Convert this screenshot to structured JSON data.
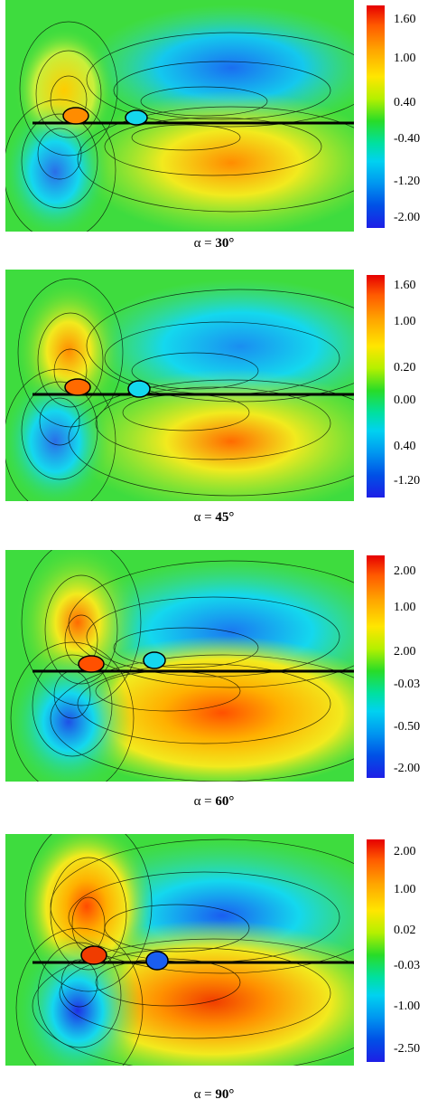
{
  "panels": [
    {
      "caption_prefix": "α = ",
      "caption_value": "30°",
      "ticks": [
        "1.60",
        "1.00",
        "0.40",
        "-0.40",
        "-1.20",
        "-2.00"
      ]
    },
    {
      "caption_prefix": "α = ",
      "caption_value": "45°",
      "ticks": [
        "1.60",
        "1.00",
        "0.20",
        "0.00",
        "0.40",
        "-1.20"
      ]
    },
    {
      "caption_prefix": "α = ",
      "caption_value": "60°",
      "ticks": [
        "2.00",
        "1.00",
        "2.00",
        "-0.03",
        "-0.50",
        "-2.00"
      ]
    },
    {
      "caption_prefix": "α = ",
      "caption_value": "90°",
      "ticks": [
        "2.00",
        "1.00",
        "0.02",
        "-0.03",
        "-1.00",
        "-2.50"
      ]
    }
  ],
  "colors": {
    "red": "#e60000",
    "orange": "#ff7a00",
    "yellow": "#f2ea1e",
    "green": "#3edc3e",
    "cyan": "#14d8ee",
    "blue": "#0a78e8",
    "darkblue": "#1e1ee6"
  }
}
